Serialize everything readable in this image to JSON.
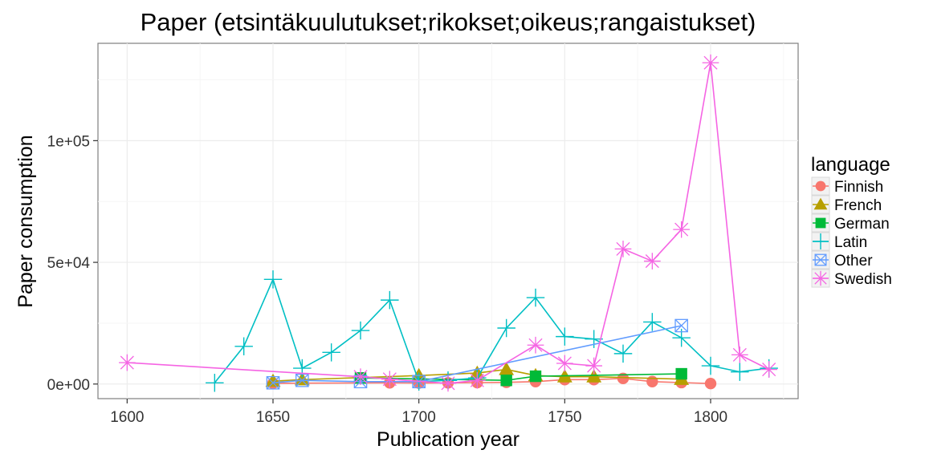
{
  "chart_data": {
    "type": "line",
    "title": "Paper (etsintäkuulutukset;rikokset;oikeus;rangaistukset)",
    "xlabel": "Publication year",
    "ylabel": "Paper consumption",
    "xlim": [
      1590,
      1830
    ],
    "ylim": [
      -6000,
      140000
    ],
    "x_ticks": [
      1600,
      1650,
      1700,
      1750,
      1800
    ],
    "x_tick_labels": [
      "1600",
      "1650",
      "1700",
      "1750",
      "1800"
    ],
    "y_ticks": [
      0,
      50000,
      100000
    ],
    "y_tick_labels": [
      "0e+00",
      "5e+04",
      "1e+05"
    ],
    "grid": true,
    "legend": {
      "title": "language",
      "position": "right"
    },
    "series": [
      {
        "name": "Finnish",
        "color": "#F8766D",
        "marker": "circle",
        "x": [
          1650,
          1690,
          1700,
          1710,
          1720,
          1730,
          1740,
          1750,
          1760,
          1770,
          1780,
          1790,
          1800
        ],
        "y": [
          300,
          500,
          400,
          500,
          600,
          700,
          1000,
          1800,
          1800,
          2300,
          1000,
          600,
          200
        ]
      },
      {
        "name": "French",
        "color": "#B79F00",
        "marker": "triangle",
        "x": [
          1650,
          1660,
          1700,
          1720,
          1730,
          1740,
          1750,
          1760,
          1790
        ],
        "y": [
          1200,
          1800,
          3500,
          4500,
          6000,
          3500,
          3000,
          3000,
          2000
        ]
      },
      {
        "name": "German",
        "color": "#00BA38",
        "marker": "square",
        "x": [
          1680,
          1730,
          1740,
          1790
        ],
        "y": [
          2500,
          1500,
          3200,
          4200
        ]
      },
      {
        "name": "Latin",
        "color": "#00BFC4",
        "marker": "plus",
        "x": [
          1630,
          1640,
          1650,
          1660,
          1670,
          1680,
          1690,
          1700,
          1710,
          1720,
          1730,
          1740,
          1750,
          1760,
          1770,
          1780,
          1790,
          1800,
          1810,
          1820
        ],
        "y": [
          500,
          15500,
          43000,
          6500,
          13000,
          22000,
          34500,
          1000,
          1500,
          2500,
          23000,
          35500,
          19500,
          18500,
          12500,
          25500,
          19000,
          7500,
          5000,
          6500
        ]
      },
      {
        "name": "Other",
        "color": "#619CFF",
        "marker": "boxx",
        "x": [
          1650,
          1660,
          1680,
          1700,
          1790
        ],
        "y": [
          500,
          1500,
          1000,
          1000,
          24000
        ]
      },
      {
        "name": "Swedish",
        "color": "#F564E3",
        "marker": "star",
        "x": [
          1600,
          1680,
          1690,
          1710,
          1720,
          1740,
          1750,
          1760,
          1770,
          1780,
          1790,
          1800,
          1810,
          1820
        ],
        "y": [
          8800,
          3000,
          2000,
          300,
          1500,
          16000,
          8500,
          7500,
          55500,
          50500,
          63500,
          132000,
          12000,
          6000
        ]
      }
    ]
  }
}
